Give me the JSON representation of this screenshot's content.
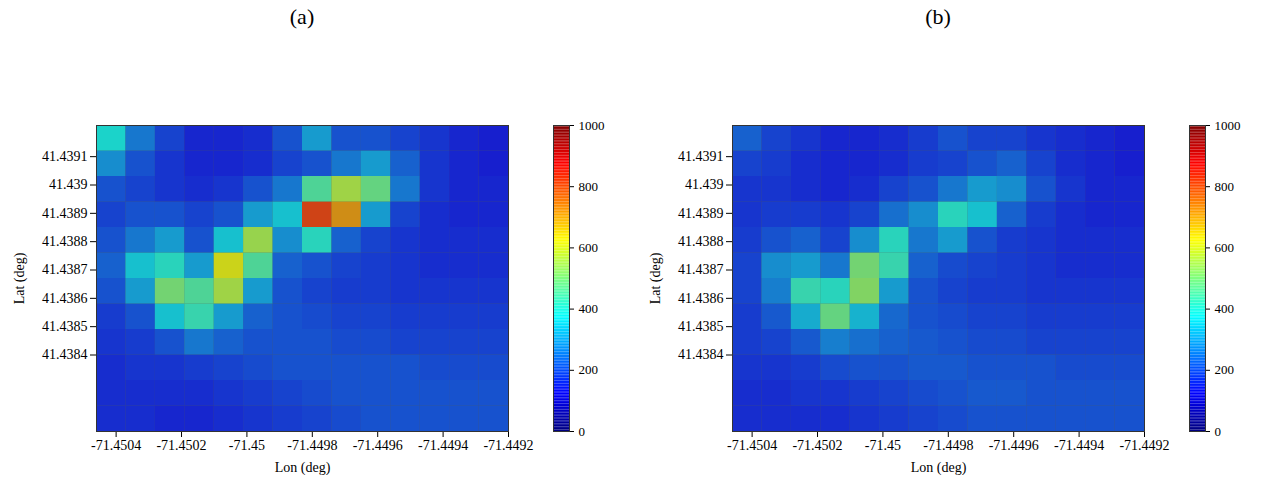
{
  "chart_data": [
    {
      "type": "heatmap",
      "title": "(a)",
      "x_label": "Lon (deg)",
      "y_label": "Lat (deg)",
      "xlim": [
        -71.45046,
        -71.4492
      ],
      "ylim": [
        41.43813,
        41.43921
      ],
      "xticks": [
        -71.4504,
        -71.4502,
        -71.45,
        -71.4498,
        -71.4496,
        -71.4494,
        -71.4492
      ],
      "yticks": [
        41.4384,
        41.4385,
        41.4386,
        41.4387,
        41.4388,
        41.4389,
        41.439,
        41.4391
      ],
      "x_edges": [
        -71.45046,
        -71.45037,
        -71.45028,
        -71.45019,
        -71.4501,
        -71.45001,
        -71.44992,
        -71.44983,
        -71.44974,
        -71.44965,
        -71.44956,
        -71.44947,
        -71.44938,
        -71.44929,
        -71.4492
      ],
      "y_edges": [
        41.43813,
        41.43822,
        41.43831,
        41.4384,
        41.43849,
        41.43858,
        41.43867,
        41.43876,
        41.43885,
        41.43894,
        41.43903,
        41.43912,
        41.43921
      ],
      "values": [
        [
          150,
          150,
          140,
          140,
          150,
          160,
          170,
          180,
          190,
          200,
          200,
          200,
          200,
          200
        ],
        [
          150,
          150,
          150,
          150,
          160,
          170,
          180,
          190,
          200,
          200,
          200,
          200,
          200,
          200
        ],
        [
          150,
          160,
          160,
          170,
          180,
          190,
          200,
          200,
          200,
          200,
          200,
          190,
          190,
          190
        ],
        [
          160,
          170,
          200,
          250,
          220,
          200,
          200,
          200,
          190,
          190,
          180,
          180,
          180,
          180
        ],
        [
          170,
          200,
          350,
          420,
          300,
          220,
          200,
          190,
          180,
          180,
          170,
          170,
          170,
          170
        ],
        [
          200,
          300,
          500,
          450,
          560,
          300,
          200,
          180,
          170,
          170,
          160,
          160,
          160,
          160
        ],
        [
          220,
          350,
          400,
          300,
          620,
          450,
          220,
          200,
          180,
          170,
          160,
          150,
          150,
          150
        ],
        [
          200,
          250,
          300,
          200,
          350,
          550,
          280,
          400,
          220,
          180,
          160,
          150,
          150,
          150
        ],
        [
          180,
          200,
          200,
          180,
          200,
          300,
          350,
          820,
          720,
          300,
          180,
          150,
          140,
          140
        ],
        [
          200,
          180,
          160,
          150,
          160,
          200,
          250,
          450,
          560,
          480,
          250,
          160,
          140,
          140
        ],
        [
          280,
          200,
          160,
          140,
          140,
          150,
          180,
          200,
          250,
          300,
          220,
          160,
          140,
          130
        ],
        [
          380,
          250,
          180,
          140,
          140,
          150,
          200,
          300,
          200,
          200,
          180,
          160,
          140,
          130
        ]
      ],
      "colorbar_range": [
        0,
        1000
      ],
      "colorbar_ticks": [
        0,
        200,
        400,
        600,
        800,
        1000
      ]
    },
    {
      "type": "heatmap",
      "title": "(b)",
      "x_label": "Lon (deg)",
      "y_label": "Lat (deg)",
      "xlim": [
        -71.45046,
        -71.4492
      ],
      "ylim": [
        41.43813,
        41.43921
      ],
      "xticks": [
        -71.4504,
        -71.4502,
        -71.45,
        -71.4498,
        -71.4496,
        -71.4494,
        -71.4492
      ],
      "yticks": [
        41.4384,
        41.4385,
        41.4386,
        41.4387,
        41.4388,
        41.4389,
        41.439,
        41.4391
      ],
      "x_edges": [
        -71.45046,
        -71.45037,
        -71.45028,
        -71.45019,
        -71.4501,
        -71.45001,
        -71.44992,
        -71.44983,
        -71.44974,
        -71.44965,
        -71.44956,
        -71.44947,
        -71.44938,
        -71.44929,
        -71.4492
      ],
      "y_edges": [
        41.43813,
        41.43822,
        41.43831,
        41.4384,
        41.43849,
        41.43858,
        41.43867,
        41.43876,
        41.43885,
        41.43894,
        41.43903,
        41.43912,
        41.43921
      ],
      "values": [
        [
          150,
          150,
          150,
          150,
          160,
          170,
          180,
          190,
          200,
          200,
          200,
          200,
          200,
          200
        ],
        [
          150,
          150,
          160,
          160,
          170,
          180,
          190,
          200,
          210,
          210,
          200,
          200,
          200,
          200
        ],
        [
          160,
          160,
          170,
          190,
          200,
          200,
          210,
          210,
          200,
          200,
          200,
          190,
          190,
          190
        ],
        [
          170,
          180,
          210,
          260,
          240,
          220,
          210,
          200,
          190,
          190,
          180,
          180,
          180,
          180
        ],
        [
          170,
          210,
          320,
          480,
          330,
          230,
          200,
          190,
          180,
          180,
          170,
          170,
          170,
          170
        ],
        [
          180,
          260,
          420,
          400,
          520,
          300,
          200,
          180,
          170,
          170,
          160,
          160,
          160,
          160
        ],
        [
          180,
          280,
          300,
          250,
          500,
          420,
          220,
          190,
          180,
          170,
          160,
          150,
          150,
          150
        ],
        [
          170,
          200,
          220,
          180,
          280,
          400,
          250,
          300,
          200,
          170,
          160,
          150,
          150,
          150
        ],
        [
          160,
          170,
          170,
          160,
          180,
          240,
          280,
          400,
          350,
          220,
          170,
          150,
          140,
          140
        ],
        [
          160,
          160,
          150,
          140,
          150,
          180,
          200,
          250,
          300,
          280,
          200,
          160,
          140,
          140
        ],
        [
          180,
          170,
          150,
          140,
          140,
          150,
          170,
          180,
          200,
          220,
          180,
          150,
          140,
          130
        ],
        [
          220,
          180,
          160,
          140,
          140,
          150,
          170,
          200,
          180,
          180,
          160,
          150,
          140,
          130
        ]
      ],
      "colorbar_range": [
        0,
        1000
      ],
      "colorbar_ticks": [
        0,
        200,
        400,
        600,
        800,
        1000
      ]
    }
  ]
}
